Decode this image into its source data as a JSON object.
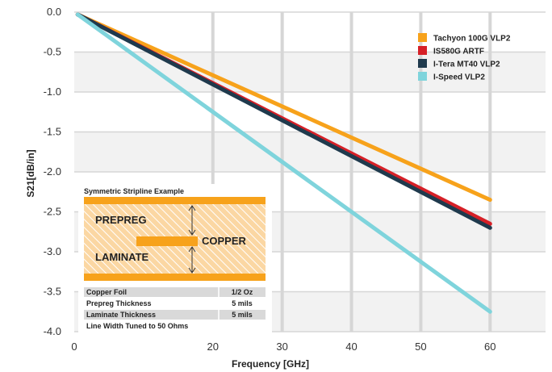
{
  "chart_data": {
    "type": "line",
    "xlabel": "Frequency [GHz]",
    "ylabel": "S21[dB/in]",
    "xlim": [
      0,
      68
    ],
    "ylim": [
      -4.0,
      0.0
    ],
    "x_ticks": [
      0,
      20,
      30,
      40,
      50,
      60
    ],
    "x_tick_labels": [
      "0",
      "20",
      "30",
      "40",
      "50",
      "60"
    ],
    "y_ticks": [
      0.0,
      -0.5,
      -1.0,
      -1.5,
      -2.0,
      -2.5,
      -3.0,
      -3.5,
      -4.0
    ],
    "y_tick_labels": [
      "0.0",
      "-0.5",
      "-1.0",
      "-1.5",
      "-2.0",
      "-2.5",
      "-3.0",
      "-3.5",
      "-4.0"
    ],
    "grid": true,
    "legend_position": "top-right",
    "series": [
      {
        "name": "Tachyon 100G VLP2",
        "color": "#f7a21b",
        "x": [
          0.5,
          60
        ],
        "y": [
          -0.03,
          -2.35
        ]
      },
      {
        "name": "IS580G ARTF",
        "color": "#d62027",
        "x": [
          0.5,
          60
        ],
        "y": [
          -0.03,
          -2.65
        ]
      },
      {
        "name": "I-Tera MT40 VLP2",
        "color": "#1f3a4d",
        "x": [
          0.5,
          60
        ],
        "y": [
          -0.03,
          -2.7
        ]
      },
      {
        "name": "I-Speed VLP2",
        "color": "#7fd4dc",
        "x": [
          0.5,
          60
        ],
        "y": [
          -0.03,
          -3.75
        ]
      }
    ]
  },
  "inset": {
    "title": "Symmetric Stripline Example",
    "prepreg_label": "PREPREG",
    "copper_label": "COPPER",
    "laminate_label": "LAMINATE",
    "rows": [
      {
        "label": "Copper Foil",
        "value": "1/2 Oz"
      },
      {
        "label": "Prepreg Thickness",
        "value": "5 mils"
      },
      {
        "label": "Laminate Thickness",
        "value": "5 mils"
      }
    ],
    "footer": "Line Width Tuned to 50 Ohms",
    "colors": {
      "copper": "#f7a21b",
      "dielectric": "#fbd7a3",
      "row_shade": "#d9d9d9"
    }
  }
}
